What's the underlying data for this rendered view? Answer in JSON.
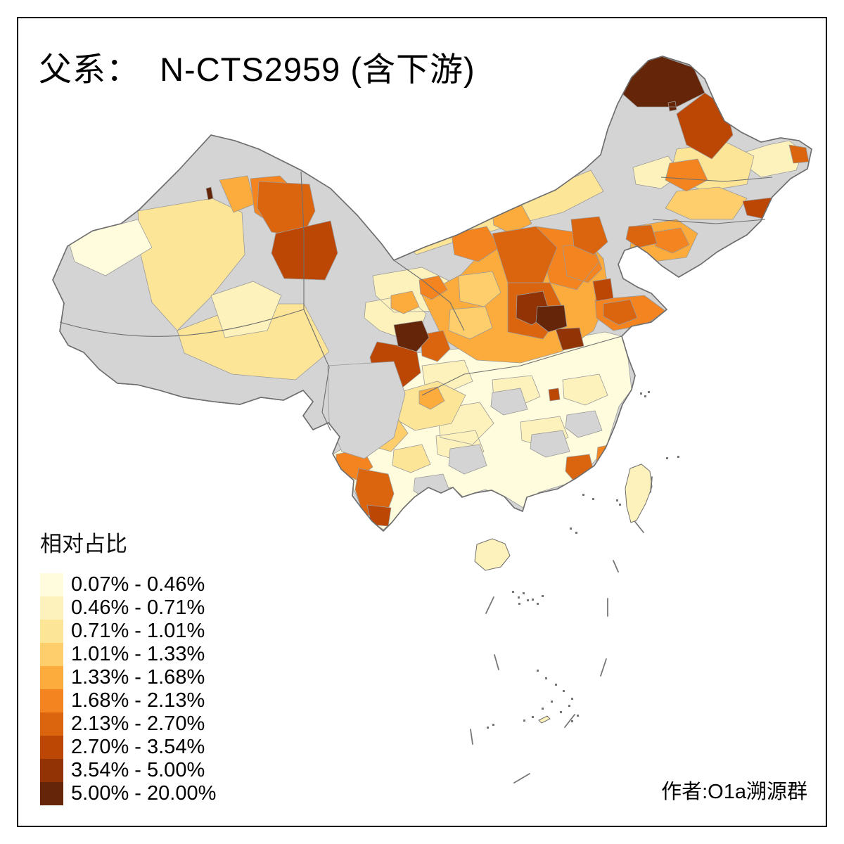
{
  "title": "父系：  N-CTS2959 (含下游)",
  "legend": {
    "title": "相对占比",
    "items": [
      {
        "label": "0.07% - 0.46%",
        "color": "#FFFCDD"
      },
      {
        "label": "0.46% - 0.71%",
        "color": "#FDF2BB"
      },
      {
        "label": "0.71% - 1.01%",
        "color": "#FDE597"
      },
      {
        "label": "1.01% - 1.33%",
        "color": "#FDCE6B"
      },
      {
        "label": "1.33% - 1.68%",
        "color": "#FCAB3D"
      },
      {
        "label": "1.68% - 2.13%",
        "color": "#F3841F"
      },
      {
        "label": "2.13% - 2.70%",
        "color": "#DB650F"
      },
      {
        "label": "2.70% - 3.54%",
        "color": "#BC4604"
      },
      {
        "label": "3.54% - 5.00%",
        "color": "#913305"
      },
      {
        "label": "5.00% - 20.00%",
        "color": "#652508"
      }
    ]
  },
  "attribution": "作者:O1a溯源群",
  "map": {
    "no_data_color": "#D4D4D4",
    "ocean_color": "#FFFFFF",
    "boundary_color": "#6E6E6E"
  }
}
